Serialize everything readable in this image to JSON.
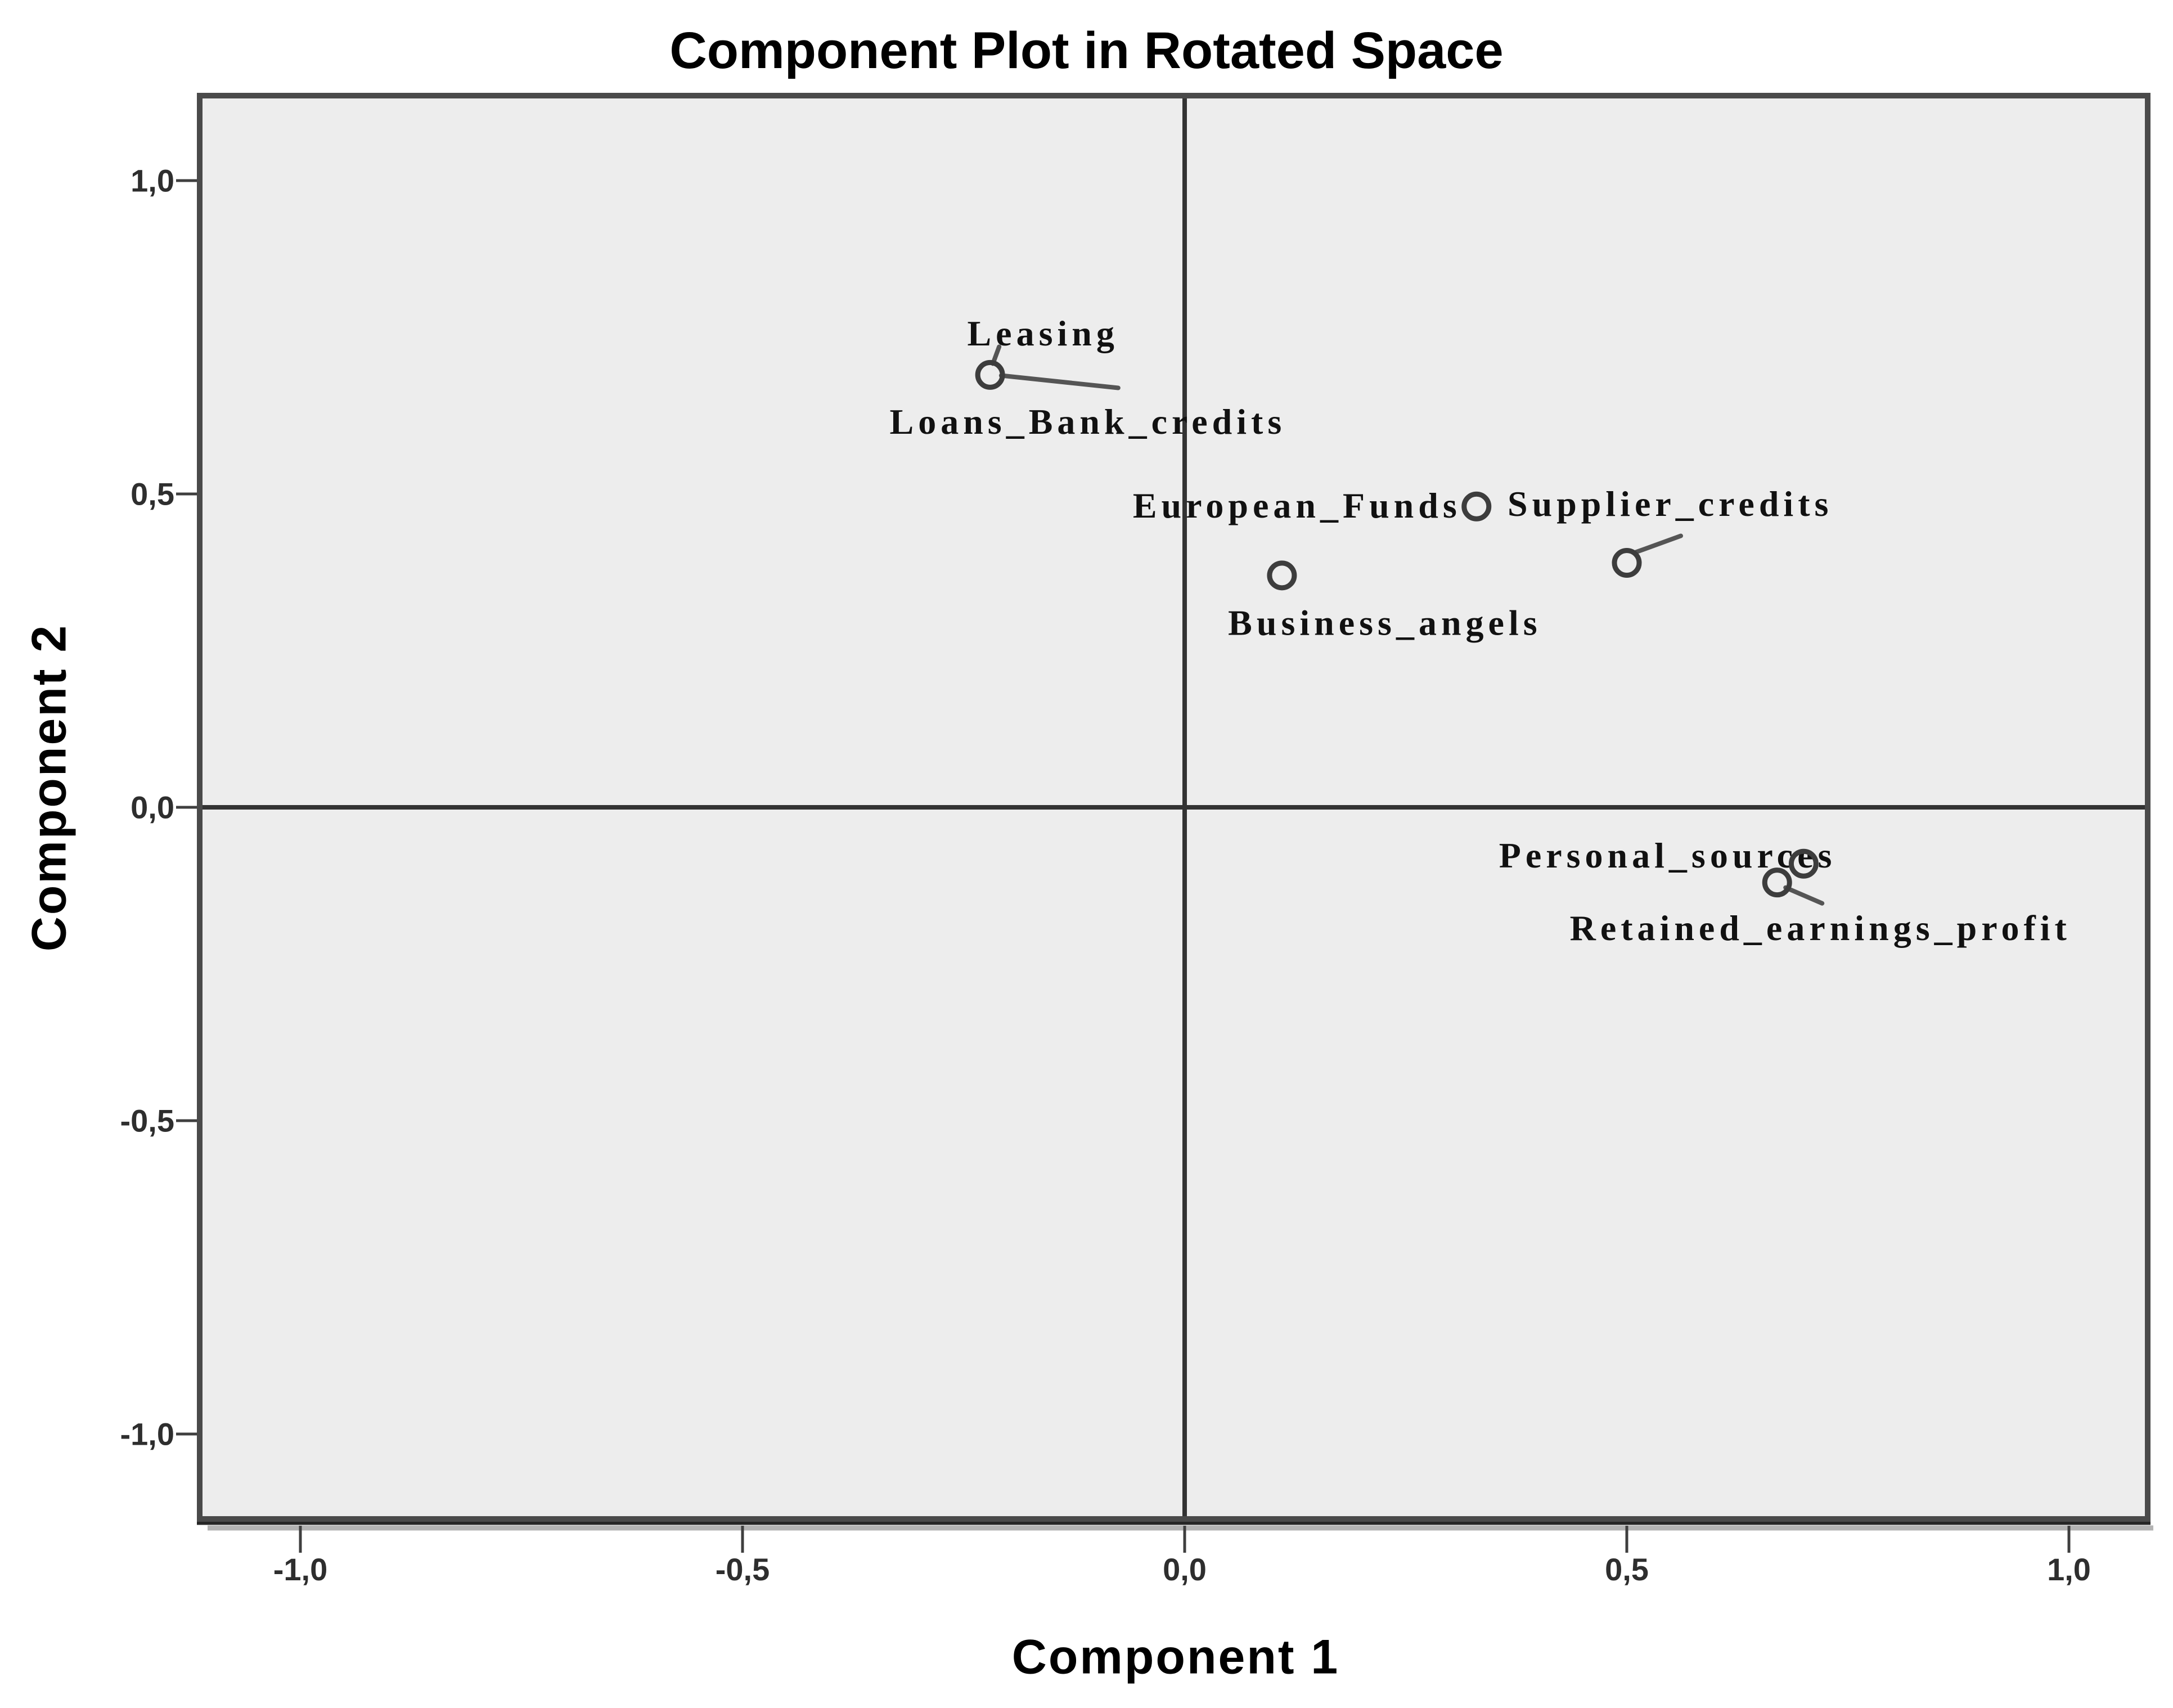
{
  "title": "Component Plot in Rotated Space",
  "colors": {
    "page_background": "#ffffff",
    "plot_background": "#ededed",
    "frame": "#4a4a4a",
    "frame_bottom": "#262626",
    "frame_shadow": "#b3b3b3",
    "axis_line": "#333333",
    "tick": "#3f3f3f",
    "tick_label": "#2e2e2e",
    "marker": "#3d3d3d",
    "leader": "#555555",
    "data_label": "#111111"
  },
  "chart_data": {
    "type": "scatter",
    "title": "Component Plot in Rotated Space",
    "xlabel": "Component 1",
    "ylabel": "Component 2",
    "xlim": [
      -1.11,
      1.09
    ],
    "ylim": [
      -1.14,
      1.13
    ],
    "grid": false,
    "zero_reference_lines": true,
    "decimal_separator": ",",
    "x_ticks": [
      {
        "value": -1.0,
        "label": "-1,0"
      },
      {
        "value": -0.5,
        "label": "-0,5"
      },
      {
        "value": 0.0,
        "label": "0,0"
      },
      {
        "value": 0.5,
        "label": "0,5"
      },
      {
        "value": 1.0,
        "label": "1,0"
      }
    ],
    "y_ticks": [
      {
        "value": 1.0,
        "label": "1,0"
      },
      {
        "value": 0.5,
        "label": "0,5"
      },
      {
        "value": 0.0,
        "label": "0,0"
      },
      {
        "value": -0.5,
        "label": "-0,5"
      },
      {
        "value": -1.0,
        "label": "-1,0"
      }
    ],
    "points": [
      {
        "id": "leasing",
        "label": "Leasing",
        "x": -0.22,
        "y": 0.69,
        "marker": true,
        "label_anchor": "middle",
        "label_offset": [
          94,
          -74
        ],
        "leader": [
          [
            5,
            -20
          ],
          [
            16,
            -50
          ]
        ]
      },
      {
        "id": "loans-bank-credits",
        "label": "Loans_Bank_credits",
        "x": -0.21,
        "y": 0.68,
        "marker": false,
        "label_anchor": "middle",
        "label_offset": [
          158,
          72
        ],
        "leader": [
          [
            4,
            -10
          ],
          [
            212,
            12
          ]
        ]
      },
      {
        "id": "european-funds",
        "label": "European_Funds",
        "x": 0.33,
        "y": 0.48,
        "marker": true,
        "label_anchor": "end",
        "label_offset": [
          -27,
          -2
        ],
        "leader": null
      },
      {
        "id": "supplier-credits",
        "label": "Supplier_credits",
        "x": 0.5,
        "y": 0.39,
        "marker": true,
        "label_anchor": "start",
        "label_offset": [
          -212,
          -105
        ],
        "leader": [
          [
            16,
            -19
          ],
          [
            96,
            -48
          ]
        ]
      },
      {
        "id": "business-angels",
        "label": "Business_angels",
        "x": 0.11,
        "y": 0.37,
        "marker": true,
        "label_anchor": "middle",
        "label_offset": [
          183,
          84
        ],
        "leader": null
      },
      {
        "id": "personal-sources",
        "label": "Personal_sources",
        "x": 0.7,
        "y": -0.09,
        "marker": true,
        "label_anchor": "end",
        "label_offset": [
          58,
          -15
        ],
        "leader": null
      },
      {
        "id": "retained-earnings-profit",
        "label": "Retained_earnings_profit",
        "x": 0.67,
        "y": -0.12,
        "marker": true,
        "label_anchor": "middle",
        "label_offset": [
          77,
          81
        ],
        "leader": [
          [
            15,
            9
          ],
          [
            80,
            37
          ]
        ]
      }
    ]
  }
}
